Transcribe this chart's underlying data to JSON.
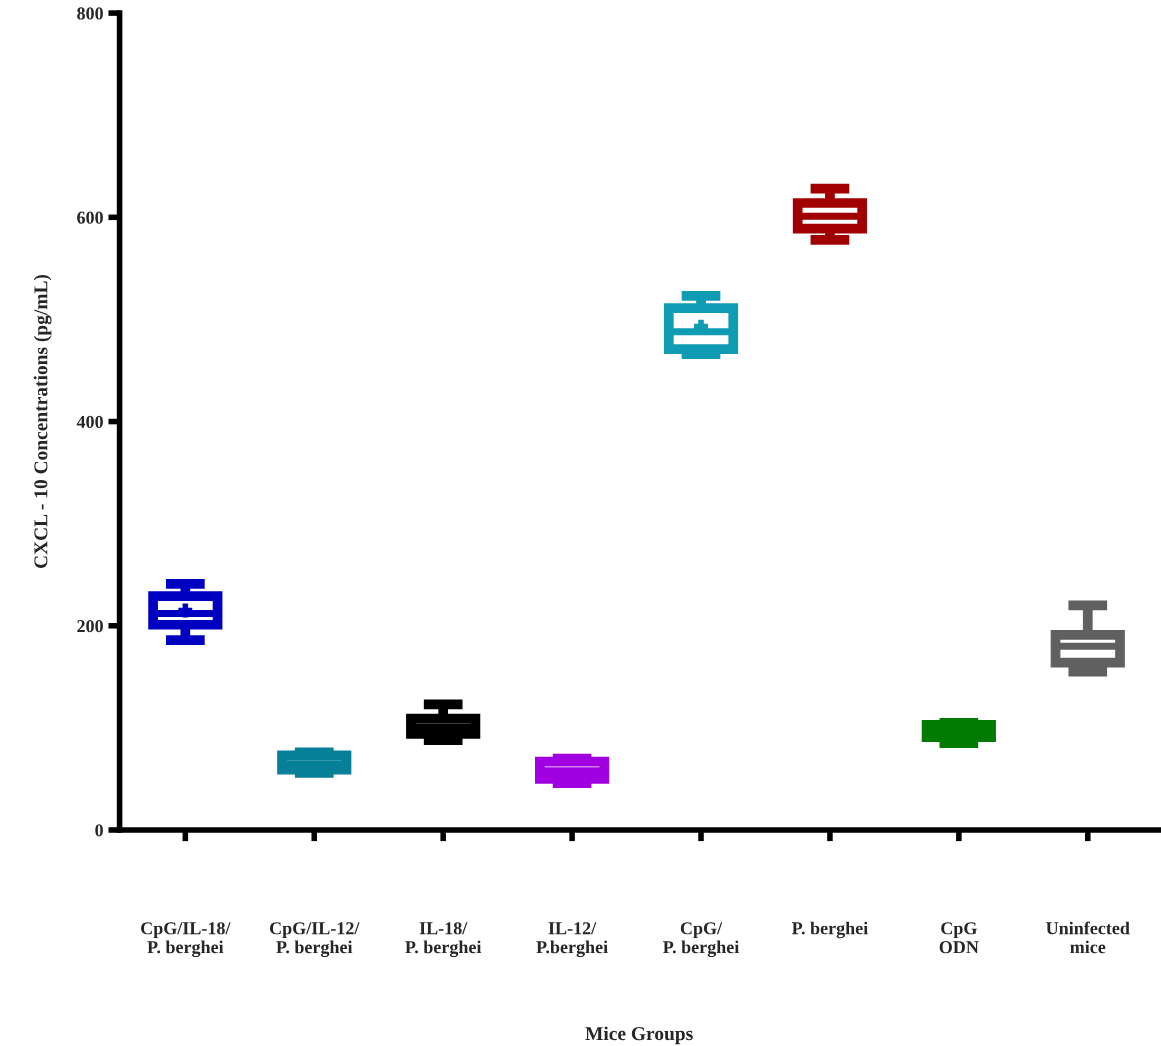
{
  "chart_data": {
    "type": "box",
    "xlabel": "Mice Groups",
    "ylabel": "CXCL - 10 Concentrations (pg/mL)",
    "categories": [
      "CpG/IL-18/\nP. berghei",
      "CpG/IL-12/\nP. berghei",
      "IL-18/\nP. berghei",
      "IL-12/\nP.berghei",
      "CpG/\nP. berghei",
      "P. berghei",
      "CpG\nODN",
      "Uninfected\nmice"
    ],
    "colors": [
      "#0000c0",
      "#067f99",
      "#000000",
      "#a000e0",
      "#109bb4",
      "#a00000",
      "#007b00",
      "#606060"
    ],
    "boxes": [
      {
        "low": 186,
        "q1": 201,
        "median": 212,
        "q3": 229,
        "high": 241,
        "mean": 215
      },
      {
        "low": 56,
        "q1": 59,
        "median": 65,
        "q3": 73,
        "high": 76
      },
      {
        "low": 88,
        "q1": 94,
        "median": 101,
        "q3": 109,
        "high": 123
      },
      {
        "low": 46,
        "q1": 50,
        "median": 58,
        "q3": 67,
        "high": 70
      },
      {
        "low": 466,
        "q1": 471,
        "median": 488,
        "q3": 511,
        "high": 523,
        "mean": 493
      },
      {
        "low": 578,
        "q1": 589,
        "median": 601,
        "q3": 614,
        "high": 628
      },
      {
        "low": 85,
        "q1": 91,
        "median": 97,
        "q3": 103,
        "high": 105
      },
      {
        "low": 155,
        "q1": 164,
        "median": 180,
        "q3": 191,
        "high": 220
      }
    ],
    "ylim": [
      0,
      800
    ],
    "yticks": [
      0,
      200,
      400,
      600,
      800
    ],
    "grid": false
  }
}
